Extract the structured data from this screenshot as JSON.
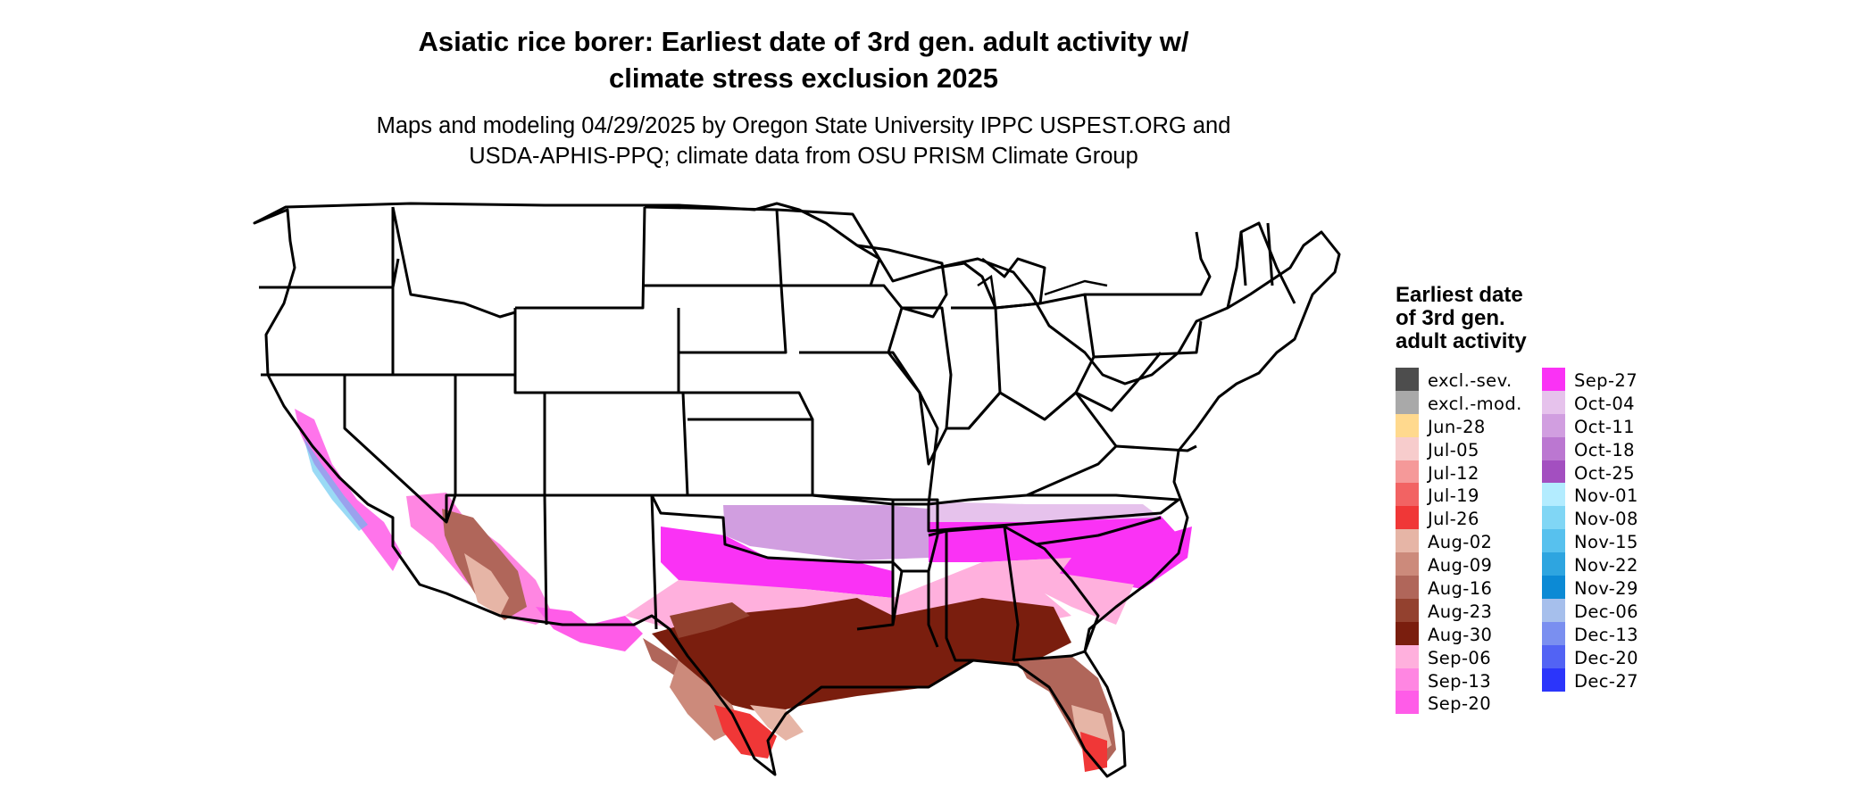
{
  "title": {
    "line1": "Asiatic rice borer: Earliest date of 3rd gen. adult activity w/",
    "line2": "climate stress exclusion 2025"
  },
  "subtitle": {
    "line1": "Maps and modeling 04/29/2025 by Oregon State University IPPC USPEST.ORG and",
    "line2": "USDA-APHIS-PPQ; climate data from OSU PRISM Climate Group"
  },
  "legend": {
    "title_lines": [
      "Earliest date",
      "of 3rd gen.",
      "adult activity"
    ],
    "items": [
      {
        "label": "excl.-sev.",
        "color": "#4d4d4d"
      },
      {
        "label": "excl.-mod.",
        "color": "#a9a9a9"
      },
      {
        "label": "Jun-28",
        "color": "#ffd98e"
      },
      {
        "label": "Jul-05",
        "color": "#f7cccc"
      },
      {
        "label": "Jul-12",
        "color": "#f59999"
      },
      {
        "label": "Jul-19",
        "color": "#f26363"
      },
      {
        "label": "Jul-26",
        "color": "#f03737"
      },
      {
        "label": "Aug-02",
        "color": "#e6b5a6"
      },
      {
        "label": "Aug-09",
        "color": "#cc8a7b"
      },
      {
        "label": "Aug-16",
        "color": "#b0665a"
      },
      {
        "label": "Aug-23",
        "color": "#93412f"
      },
      {
        "label": "Aug-30",
        "color": "#7a1e0e"
      },
      {
        "label": "Sep-06",
        "color": "#ffb0dd"
      },
      {
        "label": "Sep-13",
        "color": "#ff86e2"
      },
      {
        "label": "Sep-20",
        "color": "#ff5ce8"
      },
      {
        "label": "Sep-27",
        "color": "#fa32f5"
      },
      {
        "label": "Oct-04",
        "color": "#e6c2ec"
      },
      {
        "label": "Oct-11",
        "color": "#d19ee0"
      },
      {
        "label": "Oct-18",
        "color": "#bb77d1"
      },
      {
        "label": "Oct-25",
        "color": "#a34fc0"
      },
      {
        "label": "Nov-01",
        "color": "#b3ecff"
      },
      {
        "label": "Nov-08",
        "color": "#80d6f5"
      },
      {
        "label": "Nov-15",
        "color": "#57c1ee"
      },
      {
        "label": "Nov-22",
        "color": "#2ea5e0"
      },
      {
        "label": "Nov-29",
        "color": "#0c8ad5"
      },
      {
        "label": "Dec-06",
        "color": "#a6bfec"
      },
      {
        "label": "Dec-13",
        "color": "#7a8ff0"
      },
      {
        "label": "Dec-20",
        "color": "#5263f4"
      },
      {
        "label": "Dec-27",
        "color": "#2b35fb"
      }
    ]
  }
}
